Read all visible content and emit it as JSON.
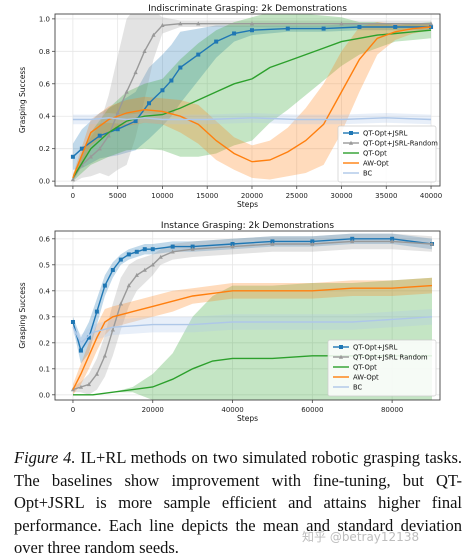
{
  "caption": {
    "label": "Figure 4.",
    "text": " IL+RL methods on two simulated robotic grasping tasks. The baselines show improvement with fine-tuning, but QT-Opt+JSRL is more sample efficient and attains higher final performance. Each line depicts the mean and standard deviation over three random seeds."
  },
  "watermark": "知乎 @betray12138",
  "chart_data": [
    {
      "type": "line",
      "title": "Indiscriminate Grasping: 2k Demonstrations",
      "xlabel": "Steps",
      "ylabel": "Grasping Success",
      "xlim": [
        -2000,
        41000
      ],
      "ylim": [
        -0.03,
        1.03
      ],
      "xticks": [
        0,
        5000,
        10000,
        15000,
        20000,
        25000,
        30000,
        35000,
        40000
      ],
      "yticks": [
        0.0,
        0.2,
        0.4,
        0.6,
        0.8,
        1.0
      ],
      "ytick_labels": [
        "0.0",
        "0.2",
        "0.4",
        "0.6",
        "0.8",
        "1.0"
      ],
      "grid": true,
      "legend": "lower-right",
      "series": [
        {
          "name": "QT-Opt+JSRL",
          "color": "#1f77b4",
          "marker": "square",
          "x": [
            0,
            1000,
            3000,
            5000,
            7000,
            8500,
            10000,
            11000,
            12000,
            14000,
            16000,
            18000,
            20000,
            24000,
            28000,
            32000,
            36000,
            40000
          ],
          "y": [
            0.15,
            0.2,
            0.28,
            0.32,
            0.37,
            0.48,
            0.56,
            0.62,
            0.7,
            0.78,
            0.86,
            0.91,
            0.93,
            0.94,
            0.94,
            0.95,
            0.95,
            0.95
          ],
          "band": [
            0.08,
            0.12,
            0.14,
            0.16,
            0.18,
            0.22,
            0.22,
            0.22,
            0.22,
            0.16,
            0.1,
            0.05,
            0.03,
            0.02,
            0.02,
            0.02,
            0.02,
            0.02
          ]
        },
        {
          "name": "QT-Opt+JSRL-Random",
          "color": "#999999",
          "marker": "triangle",
          "x": [
            0,
            1000,
            2000,
            3000,
            4000,
            5000,
            6000,
            7000,
            8000,
            9000,
            10000,
            12000,
            14000,
            20000,
            30000,
            40000
          ],
          "y": [
            0.01,
            0.1,
            0.15,
            0.2,
            0.28,
            0.42,
            0.55,
            0.67,
            0.8,
            0.9,
            0.96,
            0.97,
            0.97,
            0.97,
            0.97,
            0.97
          ],
          "band": [
            0.02,
            0.08,
            0.12,
            0.15,
            0.25,
            0.35,
            0.45,
            0.4,
            0.3,
            0.15,
            0.05,
            0.02,
            0.02,
            0.02,
            0.02,
            0.02
          ]
        },
        {
          "name": "QT-Opt",
          "color": "#2ca02c",
          "marker": "none",
          "x": [
            0,
            2000,
            4000,
            6000,
            8000,
            10000,
            12000,
            14000,
            16000,
            18000,
            20000,
            22000,
            24000,
            26000,
            28000,
            30000,
            32000,
            34000,
            36000,
            38000,
            40000
          ],
          "y": [
            0.02,
            0.2,
            0.3,
            0.37,
            0.4,
            0.41,
            0.45,
            0.5,
            0.55,
            0.6,
            0.63,
            0.7,
            0.74,
            0.78,
            0.82,
            0.86,
            0.88,
            0.9,
            0.91,
            0.92,
            0.93
          ],
          "band": [
            0.02,
            0.1,
            0.15,
            0.18,
            0.2,
            0.22,
            0.3,
            0.35,
            0.38,
            0.38,
            0.38,
            0.34,
            0.3,
            0.25,
            0.2,
            0.15,
            0.1,
            0.08,
            0.05,
            0.05,
            0.05
          ]
        },
        {
          "name": "AW-Opt",
          "color": "#ff7f0e",
          "marker": "none",
          "x": [
            0,
            2000,
            4000,
            6000,
            8000,
            10000,
            12000,
            14000,
            16000,
            18000,
            20000,
            22000,
            24000,
            26000,
            28000,
            30000,
            32000,
            34000,
            36000,
            38000,
            40000
          ],
          "y": [
            0.02,
            0.3,
            0.38,
            0.42,
            0.44,
            0.43,
            0.4,
            0.35,
            0.25,
            0.17,
            0.12,
            0.13,
            0.18,
            0.25,
            0.35,
            0.55,
            0.75,
            0.88,
            0.92,
            0.94,
            0.95
          ],
          "band": [
            0.02,
            0.08,
            0.08,
            0.08,
            0.08,
            0.08,
            0.1,
            0.12,
            0.12,
            0.1,
            0.1,
            0.12,
            0.15,
            0.2,
            0.25,
            0.25,
            0.2,
            0.1,
            0.05,
            0.03,
            0.02
          ]
        },
        {
          "name": "BC",
          "color": "#aec7e8",
          "marker": "none",
          "x": [
            0,
            2000,
            4000,
            6000,
            8000,
            10000,
            15000,
            20000,
            25000,
            30000,
            35000,
            40000
          ],
          "y": [
            0.38,
            0.38,
            0.39,
            0.38,
            0.39,
            0.38,
            0.38,
            0.39,
            0.38,
            0.38,
            0.39,
            0.38
          ],
          "band": [
            0.03,
            0.03,
            0.03,
            0.03,
            0.03,
            0.03,
            0.03,
            0.03,
            0.03,
            0.03,
            0.03,
            0.03
          ]
        }
      ]
    },
    {
      "type": "line",
      "title": "Instance Grasping: 2k Demonstrations",
      "xlabel": "Steps",
      "ylabel": "Grasping Success",
      "xlim": [
        -4500,
        92000
      ],
      "ylim": [
        -0.02,
        0.63
      ],
      "xticks": [
        0,
        20000,
        40000,
        60000,
        80000
      ],
      "yticks": [
        0.0,
        0.1,
        0.2,
        0.3,
        0.4,
        0.5,
        0.6
      ],
      "ytick_labels": [
        "0.0",
        "0.1",
        "0.2",
        "0.3",
        "0.4",
        "0.5",
        "0.6"
      ],
      "grid": true,
      "legend": "lower-right",
      "series": [
        {
          "name": "QT-Opt+JSRL",
          "color": "#1f77b4",
          "marker": "square",
          "x": [
            0,
            2000,
            4000,
            6000,
            8000,
            10000,
            12000,
            14000,
            16000,
            18000,
            20000,
            25000,
            30000,
            40000,
            50000,
            60000,
            70000,
            80000,
            90000
          ],
          "y": [
            0.28,
            0.17,
            0.22,
            0.32,
            0.42,
            0.48,
            0.52,
            0.54,
            0.55,
            0.56,
            0.56,
            0.57,
            0.57,
            0.58,
            0.59,
            0.59,
            0.6,
            0.6,
            0.58
          ],
          "band": [
            0.02,
            0.05,
            0.06,
            0.05,
            0.04,
            0.03,
            0.02,
            0.02,
            0.02,
            0.02,
            0.02,
            0.02,
            0.02,
            0.02,
            0.02,
            0.02,
            0.02,
            0.02,
            0.02
          ]
        },
        {
          "name": "QT-Opt+JSRL Random",
          "color": "#999999",
          "marker": "triangle",
          "x": [
            0,
            2000,
            4000,
            6000,
            8000,
            10000,
            12000,
            14000,
            16000,
            18000,
            20000,
            22000,
            25000,
            30000,
            40000,
            50000,
            60000,
            70000,
            80000,
            90000
          ],
          "y": [
            0.02,
            0.03,
            0.04,
            0.08,
            0.15,
            0.25,
            0.35,
            0.42,
            0.46,
            0.48,
            0.5,
            0.53,
            0.55,
            0.56,
            0.57,
            0.58,
            0.58,
            0.59,
            0.59,
            0.58
          ],
          "band": [
            0.01,
            0.02,
            0.04,
            0.06,
            0.08,
            0.1,
            0.1,
            0.08,
            0.06,
            0.05,
            0.04,
            0.03,
            0.03,
            0.03,
            0.03,
            0.03,
            0.03,
            0.03,
            0.03,
            0.03
          ]
        },
        {
          "name": "QT-Opt",
          "color": "#2ca02c",
          "marker": "none",
          "x": [
            0,
            5000,
            10000,
            15000,
            20000,
            25000,
            30000,
            35000,
            40000,
            50000,
            60000,
            70000,
            80000,
            90000
          ],
          "y": [
            0.0,
            0.0,
            0.01,
            0.02,
            0.03,
            0.06,
            0.1,
            0.13,
            0.14,
            0.14,
            0.15,
            0.15,
            0.15,
            0.15
          ],
          "band": [
            0.0,
            0.0,
            0.0,
            0.01,
            0.05,
            0.1,
            0.2,
            0.25,
            0.28,
            0.28,
            0.28,
            0.28,
            0.29,
            0.3
          ]
        },
        {
          "name": "AW-Opt",
          "color": "#ff7f0e",
          "marker": "none",
          "x": [
            0,
            2000,
            4000,
            6000,
            8000,
            10000,
            15000,
            20000,
            25000,
            30000,
            35000,
            40000,
            50000,
            60000,
            70000,
            80000,
            90000
          ],
          "y": [
            0.02,
            0.08,
            0.15,
            0.22,
            0.28,
            0.3,
            0.32,
            0.34,
            0.36,
            0.38,
            0.39,
            0.4,
            0.4,
            0.4,
            0.41,
            0.41,
            0.42
          ],
          "band": [
            0.02,
            0.04,
            0.05,
            0.05,
            0.05,
            0.04,
            0.04,
            0.04,
            0.04,
            0.03,
            0.03,
            0.03,
            0.03,
            0.03,
            0.03,
            0.03,
            0.03
          ]
        },
        {
          "name": "BC",
          "color": "#aec7e8",
          "marker": "none",
          "x": [
            0,
            2000,
            5000,
            10000,
            20000,
            30000,
            40000,
            50000,
            60000,
            70000,
            80000,
            90000
          ],
          "y": [
            0.26,
            0.2,
            0.24,
            0.26,
            0.27,
            0.27,
            0.28,
            0.28,
            0.28,
            0.28,
            0.29,
            0.3
          ],
          "band": [
            0.02,
            0.03,
            0.03,
            0.03,
            0.03,
            0.03,
            0.03,
            0.03,
            0.03,
            0.03,
            0.03,
            0.03
          ]
        }
      ]
    }
  ]
}
